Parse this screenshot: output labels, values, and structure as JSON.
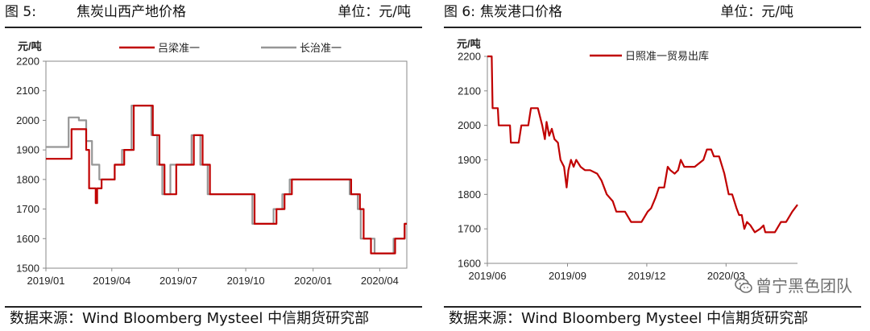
{
  "charts": [
    {
      "figure_label": "图 5:",
      "figure_title": "焦炭山西产地价格",
      "unit_text": "单位：元/吨",
      "source": "数据来源：Wind Bloomberg Mysteel 中信期货研究部"
    },
    {
      "figure_label": "图 6:",
      "figure_title": "焦炭港口价格",
      "unit_text": "单位：元/吨",
      "source": "数据来源：Wind Bloomberg Mysteel 中信期货研究部"
    }
  ],
  "watermark": {
    "text": "曾宁黑色团队",
    "icon": "wechat-icon"
  },
  "chart_data": [
    {
      "type": "line",
      "ylabel": "元/吨",
      "ylim": [
        1500,
        2200
      ],
      "yticks": [
        1500,
        1600,
        1700,
        1800,
        1900,
        2000,
        2100,
        2200
      ],
      "xlim": [
        "2019-01-01",
        "2020-05-08"
      ],
      "xticks": [
        "2019/01",
        "2019/04",
        "2019/07",
        "2019/10",
        "2020/01",
        "2020/04"
      ],
      "xtick_dates": [
        "2019-01-01",
        "2019-04-01",
        "2019-07-01",
        "2019-10-01",
        "2020-01-01",
        "2020-04-01"
      ],
      "grid": false,
      "legend_position": "top",
      "series": [
        {
          "name": "吕梁准一",
          "color": "#c00000",
          "step": true,
          "points": [
            [
              "2019-01-01",
              1870
            ],
            [
              "2019-02-05",
              1970
            ],
            [
              "2019-02-25",
              1900
            ],
            [
              "2019-03-01",
              1770
            ],
            [
              "2019-03-10",
              1720
            ],
            [
              "2019-03-12",
              1770
            ],
            [
              "2019-03-18",
              1800
            ],
            [
              "2019-04-05",
              1850
            ],
            [
              "2019-04-18",
              1900
            ],
            [
              "2019-05-01",
              2050
            ],
            [
              "2019-05-27",
              1950
            ],
            [
              "2019-06-05",
              1850
            ],
            [
              "2019-06-12",
              1750
            ],
            [
              "2019-06-28",
              1850
            ],
            [
              "2019-07-22",
              1950
            ],
            [
              "2019-08-03",
              1850
            ],
            [
              "2019-08-13",
              1750
            ],
            [
              "2019-10-13",
              1650
            ],
            [
              "2019-11-12",
              1700
            ],
            [
              "2019-11-23",
              1750
            ],
            [
              "2019-12-03",
              1800
            ],
            [
              "2020-02-22",
              1750
            ],
            [
              "2020-03-05",
              1700
            ],
            [
              "2020-03-10",
              1600
            ],
            [
              "2020-03-20",
              1550
            ],
            [
              "2020-04-22",
              1600
            ],
            [
              "2020-05-05",
              1650
            ],
            [
              "2020-05-08",
              1650
            ]
          ]
        },
        {
          "name": "长治准一",
          "color": "#969696",
          "step": true,
          "points": [
            [
              "2019-01-01",
              1910
            ],
            [
              "2019-02-01",
              2010
            ],
            [
              "2019-02-15",
              2000
            ],
            [
              "2019-02-25",
              1930
            ],
            [
              "2019-03-05",
              1850
            ],
            [
              "2019-03-15",
              1800
            ],
            [
              "2019-04-05",
              1850
            ],
            [
              "2019-04-15",
              1900
            ],
            [
              "2019-04-28",
              2050
            ],
            [
              "2019-05-25",
              1950
            ],
            [
              "2019-06-02",
              1850
            ],
            [
              "2019-06-09",
              1750
            ],
            [
              "2019-06-20",
              1850
            ],
            [
              "2019-07-19",
              1950
            ],
            [
              "2019-07-31",
              1850
            ],
            [
              "2019-08-10",
              1750
            ],
            [
              "2019-10-10",
              1650
            ],
            [
              "2019-11-08",
              1700
            ],
            [
              "2019-11-20",
              1750
            ],
            [
              "2019-11-30",
              1800
            ],
            [
              "2020-02-20",
              1750
            ],
            [
              "2020-03-02",
              1700
            ],
            [
              "2020-03-06",
              1600
            ],
            [
              "2020-03-25",
              1550
            ],
            [
              "2020-04-20",
              1600
            ],
            [
              "2020-05-05",
              1650
            ],
            [
              "2020-05-08",
              1650
            ]
          ]
        }
      ]
    },
    {
      "type": "line",
      "ylabel": "元/吨",
      "ylim": [
        1600,
        2200
      ],
      "yticks": [
        1600,
        1700,
        1800,
        1900,
        2000,
        2100,
        2200
      ],
      "xlim": [
        "2019-06-01",
        "2020-05-22"
      ],
      "xticks": [
        "2019/06",
        "2019/09",
        "2019/12",
        "2020/03"
      ],
      "xtick_dates": [
        "2019-06-01",
        "2019-09-01",
        "2019-12-01",
        "2020-03-01"
      ],
      "grid": false,
      "legend_position": "top",
      "series": [
        {
          "name": "日照准一贸易出库",
          "color": "#c00000",
          "step": false,
          "points": [
            [
              "2019-06-01",
              2200
            ],
            [
              "2019-06-06",
              2200
            ],
            [
              "2019-06-07",
              2050
            ],
            [
              "2019-06-13",
              2050
            ],
            [
              "2019-06-14",
              2000
            ],
            [
              "2019-06-27",
              2000
            ],
            [
              "2019-06-28",
              1950
            ],
            [
              "2019-07-07",
              1950
            ],
            [
              "2019-07-10",
              2000
            ],
            [
              "2019-07-18",
              2000
            ],
            [
              "2019-07-21",
              2050
            ],
            [
              "2019-07-29",
              2050
            ],
            [
              "2019-08-03",
              2000
            ],
            [
              "2019-08-06",
              1960
            ],
            [
              "2019-08-08",
              2010
            ],
            [
              "2019-08-11",
              1970
            ],
            [
              "2019-08-14",
              1990
            ],
            [
              "2019-08-17",
              1960
            ],
            [
              "2019-08-21",
              1950
            ],
            [
              "2019-08-24",
              1900
            ],
            [
              "2019-08-28",
              1880
            ],
            [
              "2019-08-31",
              1820
            ],
            [
              "2019-09-02",
              1870
            ],
            [
              "2019-09-05",
              1900
            ],
            [
              "2019-09-08",
              1880
            ],
            [
              "2019-09-11",
              1900
            ],
            [
              "2019-09-16",
              1880
            ],
            [
              "2019-09-21",
              1870
            ],
            [
              "2019-09-27",
              1870
            ],
            [
              "2019-10-05",
              1860
            ],
            [
              "2019-10-10",
              1840
            ],
            [
              "2019-10-16",
              1800
            ],
            [
              "2019-10-23",
              1780
            ],
            [
              "2019-10-27",
              1750
            ],
            [
              "2019-11-06",
              1750
            ],
            [
              "2019-11-13",
              1720
            ],
            [
              "2019-11-25",
              1720
            ],
            [
              "2019-12-02",
              1750
            ],
            [
              "2019-12-06",
              1760
            ],
            [
              "2019-12-11",
              1790
            ],
            [
              "2019-12-15",
              1820
            ],
            [
              "2019-12-21",
              1820
            ],
            [
              "2019-12-25",
              1880
            ],
            [
              "2019-12-28",
              1870
            ],
            [
              "2020-01-02",
              1860
            ],
            [
              "2020-01-06",
              1870
            ],
            [
              "2020-01-09",
              1900
            ],
            [
              "2020-01-13",
              1880
            ],
            [
              "2020-01-25",
              1880
            ],
            [
              "2020-02-04",
              1900
            ],
            [
              "2020-02-08",
              1930
            ],
            [
              "2020-02-13",
              1930
            ],
            [
              "2020-02-16",
              1910
            ],
            [
              "2020-02-22",
              1910
            ],
            [
              "2020-02-28",
              1860
            ],
            [
              "2020-03-04",
              1800
            ],
            [
              "2020-03-08",
              1800
            ],
            [
              "2020-03-13",
              1760
            ],
            [
              "2020-03-16",
              1740
            ],
            [
              "2020-03-19",
              1740
            ],
            [
              "2020-03-22",
              1700
            ],
            [
              "2020-03-25",
              1720
            ],
            [
              "2020-03-29",
              1710
            ],
            [
              "2020-04-03",
              1690
            ],
            [
              "2020-04-09",
              1700
            ],
            [
              "2020-04-13",
              1710
            ],
            [
              "2020-04-15",
              1690
            ],
            [
              "2020-04-26",
              1690
            ],
            [
              "2020-05-03",
              1720
            ],
            [
              "2020-05-09",
              1720
            ],
            [
              "2020-05-16",
              1750
            ],
            [
              "2020-05-22",
              1770
            ]
          ]
        }
      ]
    }
  ]
}
